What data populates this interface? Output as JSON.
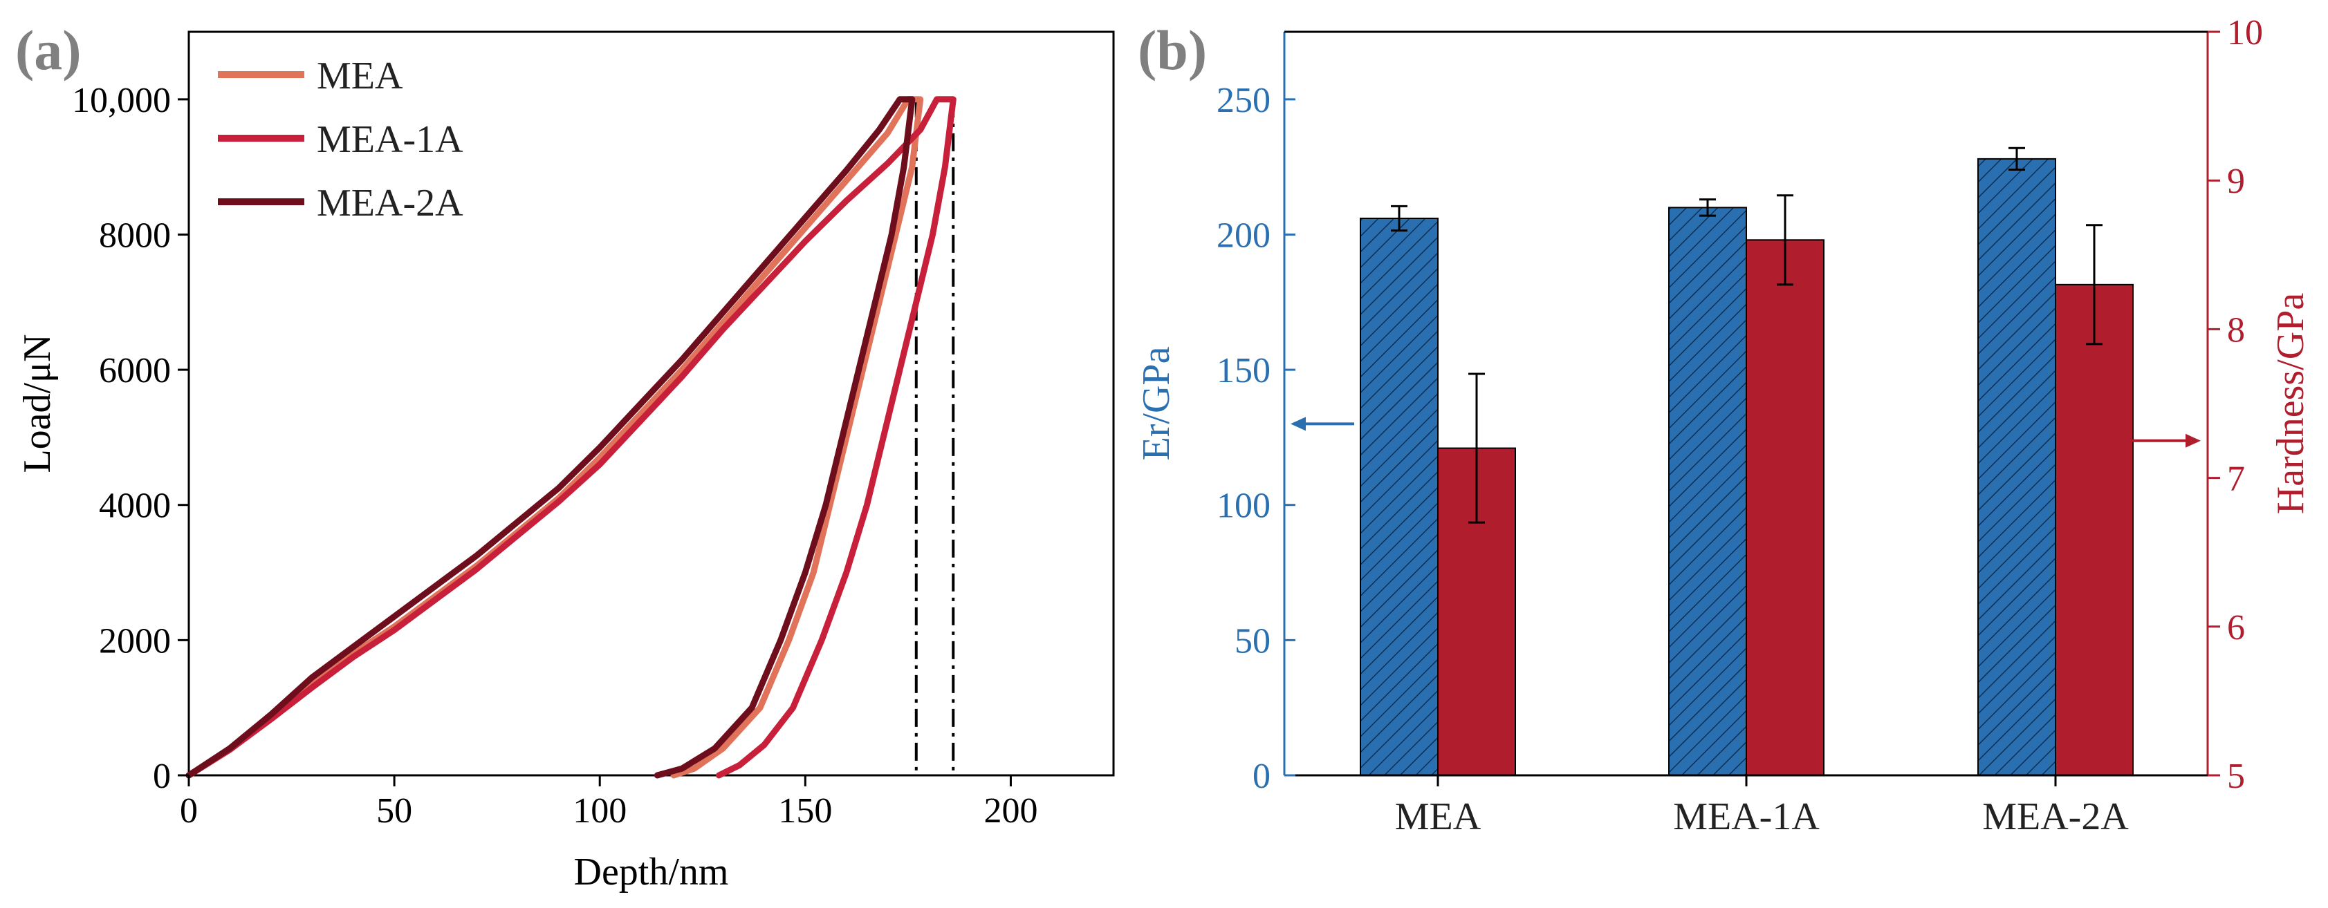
{
  "colors": {
    "blue": "#2a6fb0",
    "red": "#b01e2e",
    "mea": "#e0735a",
    "mea1a": "#c8203a",
    "mea2a": "#6e0d1c",
    "axis": "#000000"
  },
  "chart_data": [
    {
      "id": "a",
      "panel_label": "(a)",
      "type": "line",
      "title": "",
      "xlabel": "Depth/nm",
      "ylabel": "Load/μN",
      "xlim": [
        0,
        225
      ],
      "ylim": [
        0,
        11000
      ],
      "x_ticks": [
        0,
        50,
        100,
        150,
        200
      ],
      "x_tick_labels": [
        "0",
        "50",
        "100",
        "150",
        "200"
      ],
      "y_ticks": [
        0,
        2000,
        4000,
        6000,
        8000,
        10000
      ],
      "y_tick_labels": [
        "0",
        "2000",
        "4000",
        "6000",
        "8000",
        "10,000"
      ],
      "legend_position": "top-left",
      "reference_lines_x": [
        177,
        186
      ],
      "series": [
        {
          "name": "MEA",
          "color": "#e0735a",
          "loading": [
            [
              0,
              0
            ],
            [
              10,
              380
            ],
            [
              20,
              850
            ],
            [
              30,
              1350
            ],
            [
              40,
              1800
            ],
            [
              50,
              2200
            ],
            [
              60,
              2650
            ],
            [
              70,
              3100
            ],
            [
              80,
              3600
            ],
            [
              90,
              4100
            ],
            [
              100,
              4700
            ],
            [
              110,
              5350
            ],
            [
              120,
              6000
            ],
            [
              130,
              6700
            ],
            [
              140,
              7400
            ],
            [
              150,
              8100
            ],
            [
              160,
              8800
            ],
            [
              170,
              9500
            ],
            [
              175,
              10000
            ]
          ],
          "hold": [
            [
              175,
              10000
            ],
            [
              178,
              10000
            ]
          ],
          "unloading": [
            [
              178,
              10000
            ],
            [
              176,
              9000
            ],
            [
              172,
              8000
            ],
            [
              168,
              7000
            ],
            [
              164,
              6000
            ],
            [
              160,
              5000
            ],
            [
              156,
              4000
            ],
            [
              152,
              3000
            ],
            [
              146,
              2000
            ],
            [
              139,
              1000
            ],
            [
              130,
              400
            ],
            [
              123,
              100
            ],
            [
              118,
              0
            ]
          ]
        },
        {
          "name": "MEA-1A",
          "color": "#c8203a",
          "loading": [
            [
              0,
              0
            ],
            [
              10,
              380
            ],
            [
              20,
              830
            ],
            [
              30,
              1300
            ],
            [
              40,
              1750
            ],
            [
              50,
              2150
            ],
            [
              60,
              2600
            ],
            [
              70,
              3050
            ],
            [
              80,
              3550
            ],
            [
              90,
              4050
            ],
            [
              100,
              4600
            ],
            [
              110,
              5250
            ],
            [
              120,
              5900
            ],
            [
              130,
              6600
            ],
            [
              140,
              7250
            ],
            [
              150,
              7900
            ],
            [
              160,
              8500
            ],
            [
              170,
              9050
            ],
            [
              178,
              9550
            ],
            [
              182,
              10000
            ]
          ],
          "hold": [
            [
              182,
              10000
            ],
            [
              186,
              10000
            ]
          ],
          "unloading": [
            [
              186,
              10000
            ],
            [
              184,
              9000
            ],
            [
              181,
              8000
            ],
            [
              177,
              7000
            ],
            [
              173,
              6000
            ],
            [
              169,
              5000
            ],
            [
              165,
              4000
            ],
            [
              160,
              3000
            ],
            [
              154,
              2000
            ],
            [
              147,
              1000
            ],
            [
              140,
              450
            ],
            [
              134,
              150
            ],
            [
              129,
              0
            ]
          ]
        },
        {
          "name": "MEA-2A",
          "color": "#6e0d1c",
          "loading": [
            [
              0,
              0
            ],
            [
              10,
              400
            ],
            [
              20,
              900
            ],
            [
              30,
              1450
            ],
            [
              40,
              1900
            ],
            [
              50,
              2350
            ],
            [
              60,
              2800
            ],
            [
              70,
              3250
            ],
            [
              80,
              3750
            ],
            [
              90,
              4250
            ],
            [
              100,
              4850
            ],
            [
              110,
              5500
            ],
            [
              120,
              6150
            ],
            [
              130,
              6850
            ],
            [
              140,
              7550
            ],
            [
              150,
              8250
            ],
            [
              160,
              8950
            ],
            [
              168,
              9550
            ],
            [
              173,
              10000
            ]
          ],
          "hold": [
            [
              173,
              10000
            ],
            [
              176,
              10000
            ]
          ],
          "unloading": [
            [
              176,
              10000
            ],
            [
              174,
              9000
            ],
            [
              171,
              8000
            ],
            [
              167,
              7000
            ],
            [
              163,
              6000
            ],
            [
              159,
              5000
            ],
            [
              155,
              4000
            ],
            [
              150,
              3000
            ],
            [
              144,
              2000
            ],
            [
              137,
              1000
            ],
            [
              128,
              400
            ],
            [
              120,
              100
            ],
            [
              114,
              0
            ]
          ]
        }
      ]
    },
    {
      "id": "b",
      "panel_label": "(b)",
      "type": "bar",
      "title": "",
      "xlabel": "",
      "categories": [
        "MEA",
        "MEA-1A",
        "MEA-2A"
      ],
      "y_left": {
        "label": "Er/GPa",
        "lim": [
          0,
          275
        ],
        "ticks": [
          0,
          50,
          100,
          150,
          200,
          250
        ],
        "tick_labels": [
          "0",
          "50",
          "100",
          "150",
          "200",
          "250"
        ]
      },
      "y_right": {
        "label": "Hardness/GPa",
        "lim": [
          5,
          10
        ],
        "ticks": [
          5,
          6,
          7,
          8,
          9,
          10
        ],
        "tick_labels": [
          "5",
          "6",
          "7",
          "8",
          "9",
          "10"
        ]
      },
      "series": [
        {
          "name": "Er",
          "axis": "left",
          "color": "#2a6fb0",
          "pattern": "hatched",
          "values": [
            206,
            210,
            228
          ],
          "errors": [
            4.5,
            3,
            4
          ]
        },
        {
          "name": "Hardness",
          "axis": "right",
          "color": "#b01e2e",
          "pattern": "solid",
          "values": [
            7.2,
            8.6,
            8.3
          ],
          "errors": [
            0.5,
            0.3,
            0.4
          ]
        }
      ]
    }
  ]
}
